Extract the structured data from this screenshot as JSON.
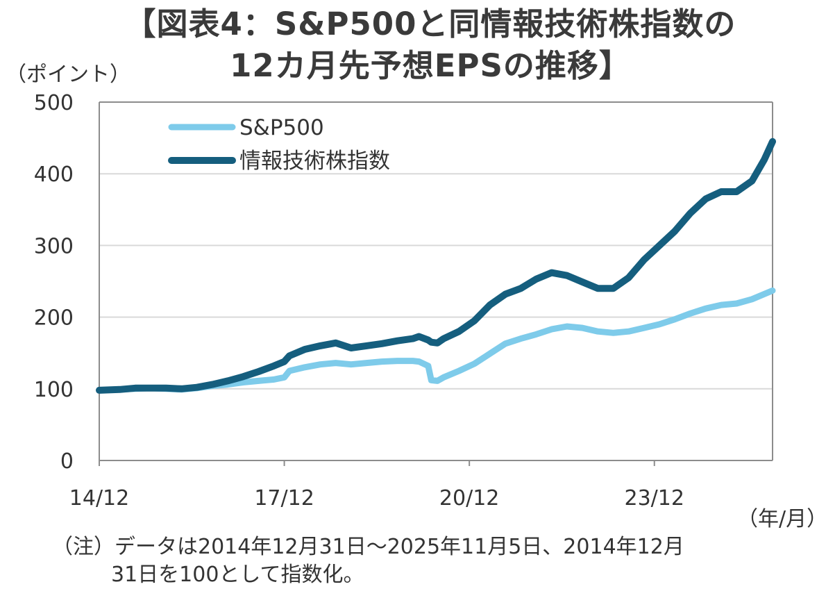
{
  "title": {
    "line1": "【図表4：S&P500と同情報技術株指数の",
    "line2": "12カ月先予想EPSの推移】"
  },
  "y_unit": "（ポイント）",
  "x_unit": "（年/月）",
  "note": {
    "line1": "（注）データは2014年12月31日～2025年11月5日、2014年12月",
    "line2": "31日を100として指数化。"
  },
  "colors": {
    "sp500": "#7ecbea",
    "it": "#155e7e",
    "grid": "#d9d9d9",
    "axis": "#8c8c8c"
  },
  "chart_data": {
    "type": "line",
    "title": "S&P500と同情報技術株指数の12カ月先予想EPSの推移",
    "xlabel": "（年/月）",
    "ylabel": "（ポイント）",
    "ylim": [
      0,
      500
    ],
    "y_ticks": [
      0,
      100,
      200,
      300,
      400,
      500
    ],
    "x_range": [
      2014.917,
      2025.833
    ],
    "x_ticks": [
      {
        "x": 2014.917,
        "label": "14/12"
      },
      {
        "x": 2017.917,
        "label": "17/12"
      },
      {
        "x": 2020.917,
        "label": "20/12"
      },
      {
        "x": 2023.917,
        "label": "23/12"
      }
    ],
    "legend": "top-left",
    "grid": true,
    "series": [
      {
        "name": "S&P500",
        "x": [
          2014.917,
          2015.25,
          2015.5,
          2015.75,
          2016.0,
          2016.25,
          2016.5,
          2016.75,
          2017.0,
          2017.25,
          2017.5,
          2017.75,
          2017.917,
          2018.0,
          2018.25,
          2018.5,
          2018.75,
          2019.0,
          2019.25,
          2019.5,
          2019.75,
          2020.0,
          2020.1,
          2020.25,
          2020.3,
          2020.4,
          2020.5,
          2020.75,
          2021.0,
          2021.25,
          2021.5,
          2021.75,
          2022.0,
          2022.25,
          2022.5,
          2022.75,
          2023.0,
          2023.25,
          2023.5,
          2023.75,
          2024.0,
          2024.25,
          2024.5,
          2024.75,
          2025.0,
          2025.25,
          2025.5,
          2025.833
        ],
        "values": [
          98,
          99,
          100,
          101,
          100,
          99,
          101,
          104,
          106,
          109,
          111,
          113,
          116,
          125,
          130,
          134,
          136,
          134,
          136,
          138,
          139,
          139,
          138,
          132,
          112,
          111,
          116,
          125,
          135,
          149,
          163,
          170,
          176,
          183,
          187,
          185,
          180,
          178,
          180,
          185,
          190,
          197,
          205,
          212,
          217,
          219,
          225,
          237
        ]
      },
      {
        "name": "情報技術株指数",
        "x": [
          2014.917,
          2015.25,
          2015.5,
          2015.75,
          2016.0,
          2016.25,
          2016.5,
          2016.75,
          2017.0,
          2017.25,
          2017.5,
          2017.75,
          2017.917,
          2018.0,
          2018.25,
          2018.5,
          2018.75,
          2019.0,
          2019.25,
          2019.5,
          2019.75,
          2020.0,
          2020.1,
          2020.25,
          2020.3,
          2020.4,
          2020.5,
          2020.75,
          2021.0,
          2021.25,
          2021.5,
          2021.75,
          2022.0,
          2022.25,
          2022.5,
          2022.75,
          2023.0,
          2023.25,
          2023.5,
          2023.75,
          2024.0,
          2024.25,
          2024.5,
          2024.75,
          2025.0,
          2025.25,
          2025.5,
          2025.7,
          2025.833
        ],
        "values": [
          98,
          99,
          101,
          101,
          101,
          100,
          102,
          106,
          111,
          117,
          124,
          132,
          138,
          146,
          155,
          160,
          164,
          157,
          160,
          163,
          167,
          170,
          173,
          168,
          165,
          164,
          170,
          180,
          195,
          217,
          232,
          240,
          253,
          262,
          258,
          249,
          240,
          240,
          255,
          280,
          300,
          320,
          345,
          365,
          375,
          375,
          390,
          420,
          445
        ]
      }
    ]
  }
}
